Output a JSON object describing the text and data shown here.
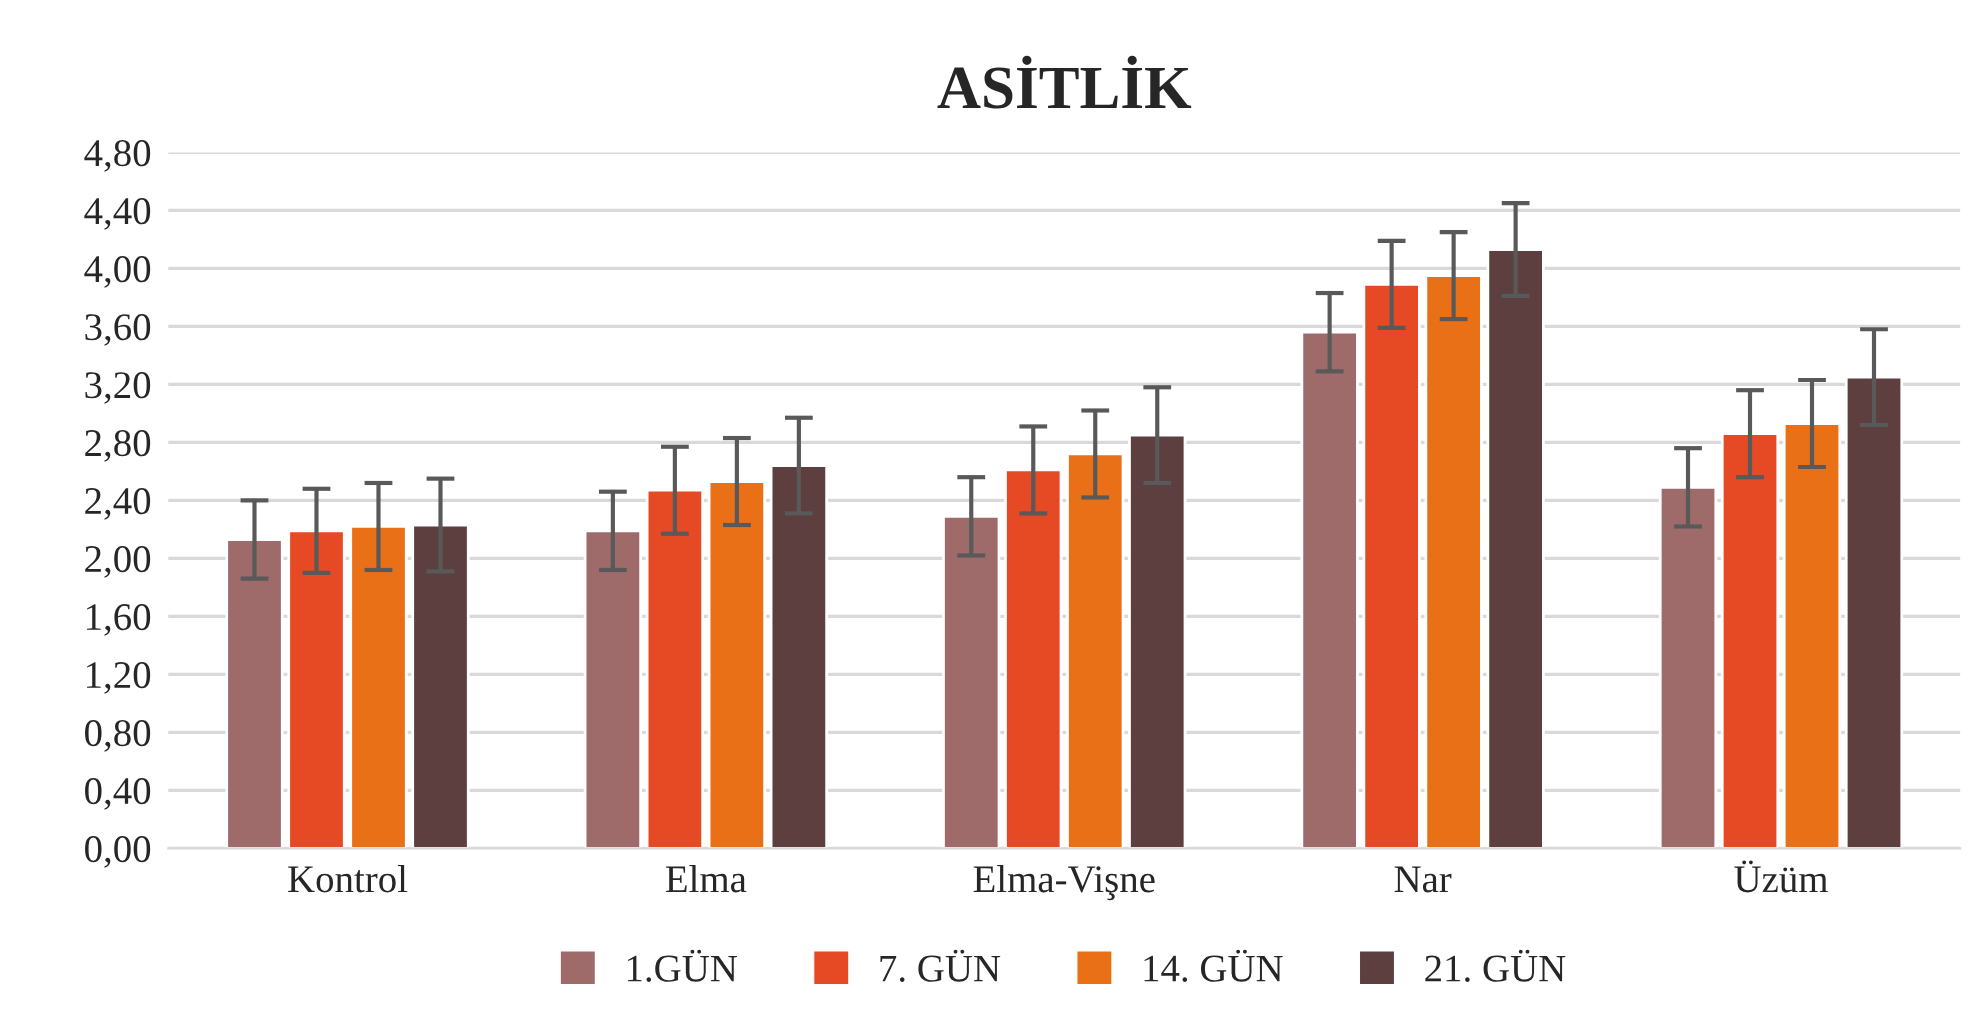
{
  "chart_data": {
    "type": "bar",
    "title": "ASİTLİK",
    "categories": [
      "Kontrol",
      "Elma",
      "Elma-Vişne",
      "Nar",
      "Üzüm"
    ],
    "series": [
      {
        "name": "1.GÜN",
        "color": "#9e6a6a",
        "values": [
          2.13,
          2.19,
          2.29,
          3.56,
          2.49
        ],
        "errors": [
          0.27,
          0.27,
          0.27,
          0.27,
          0.27
        ]
      },
      {
        "name": "7. GÜN",
        "color": "#e54a24",
        "values": [
          2.19,
          2.47,
          2.61,
          3.89,
          2.86
        ],
        "errors": [
          0.29,
          0.3,
          0.3,
          0.3,
          0.3
        ]
      },
      {
        "name": "14. GÜN",
        "color": "#ea7017",
        "values": [
          2.22,
          2.53,
          2.72,
          3.95,
          2.93
        ],
        "errors": [
          0.3,
          0.3,
          0.3,
          0.3,
          0.3
        ]
      },
      {
        "name": "21. GÜN",
        "color": "#5d3f40",
        "values": [
          2.23,
          2.64,
          2.85,
          4.13,
          3.25
        ],
        "errors": [
          0.32,
          0.33,
          0.33,
          0.32,
          0.33
        ]
      }
    ],
    "ylim": [
      0,
      4.8
    ],
    "yticks": [
      {
        "value": 0,
        "label": "0,00"
      },
      {
        "value": 0.4,
        "label": "0,40"
      },
      {
        "value": 0.8,
        "label": "0,80"
      },
      {
        "value": 1.2,
        "label": "1,20"
      },
      {
        "value": 1.6,
        "label": "1,60"
      },
      {
        "value": 2.0,
        "label": "2,00"
      },
      {
        "value": 2.4,
        "label": "2,40"
      },
      {
        "value": 2.8,
        "label": "2,80"
      },
      {
        "value": 3.2,
        "label": "3,20"
      },
      {
        "value": 3.6,
        "label": "3,60"
      },
      {
        "value": 4.0,
        "label": "4,00"
      },
      {
        "value": 4.4,
        "label": "4,40"
      },
      {
        "value": 4.8,
        "label": "4,80"
      }
    ],
    "grid": "y",
    "legend": "bottom"
  }
}
